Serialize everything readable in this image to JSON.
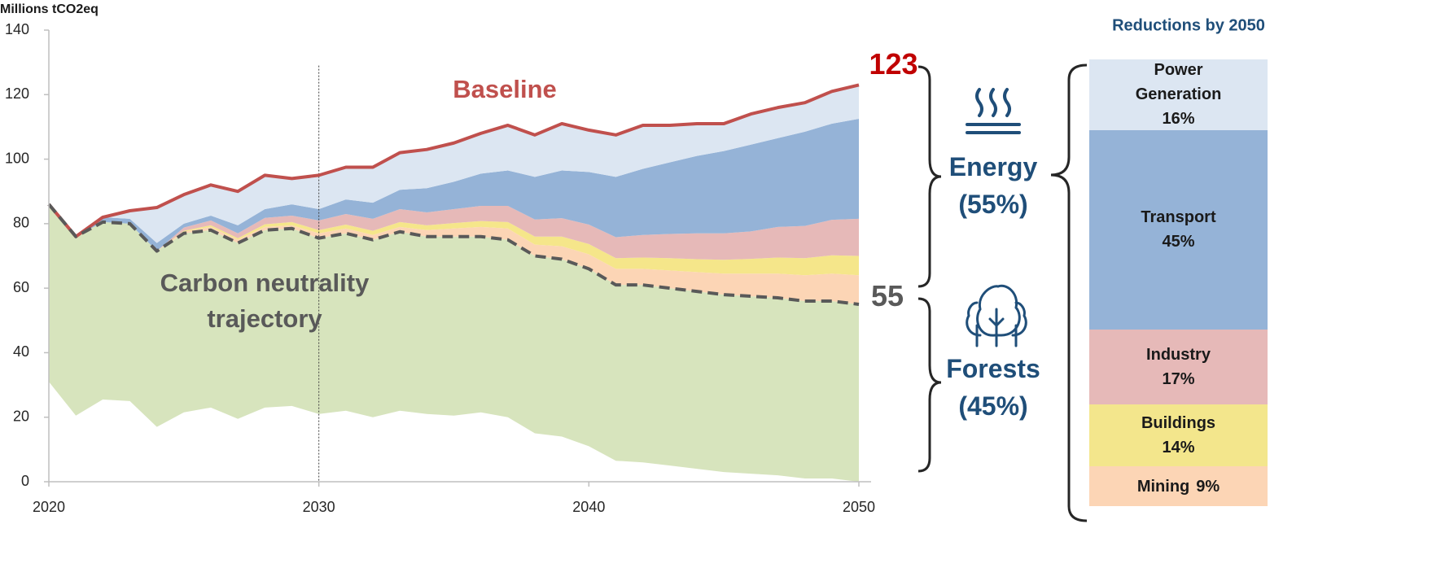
{
  "chart_data": [
    {
      "type": "stacked_area",
      "y_label": "Millions tCO2eq",
      "x": [
        2020,
        2021,
        2022,
        2023,
        2024,
        2025,
        2026,
        2027,
        2028,
        2029,
        2030,
        2031,
        2032,
        2033,
        2034,
        2035,
        2036,
        2037,
        2038,
        2039,
        2040,
        2041,
        2042,
        2043,
        2044,
        2045,
        2046,
        2047,
        2048,
        2049,
        2050
      ],
      "xlim": [
        2020,
        2050
      ],
      "xticks": [
        2020,
        2030,
        2040,
        2050
      ],
      "ylim": [
        0,
        140
      ],
      "yticks": [
        0,
        20,
        40,
        60,
        80,
        100,
        120,
        140
      ],
      "vline": {
        "x": 2030,
        "top": 129
      },
      "series": [
        {
          "color": "#ffffff",
          "values": [
            31,
            20.5,
            25.5,
            25,
            17,
            21.5,
            23,
            19.5,
            23,
            23.5,
            21,
            22,
            20,
            22,
            21,
            20.5,
            21.5,
            20,
            15,
            14,
            11,
            6.5,
            6,
            5,
            4,
            3,
            2.5,
            2,
            1,
            1,
            0
          ]
        },
        {
          "color": "#d7e4bd",
          "values": [
            55,
            55.5,
            55,
            55,
            54.5,
            55.5,
            55,
            54.5,
            55,
            55,
            54.5,
            55,
            55,
            55.5,
            55,
            55.5,
            54.5,
            55,
            55,
            55,
            55,
            54.5,
            55,
            55,
            55,
            55,
            55,
            55,
            55,
            55,
            55
          ]
        },
        {
          "color": "#fcd5b5",
          "values": [
            0,
            0,
            0,
            0,
            0,
            0.5,
            1,
            1,
            1,
            1,
            1.5,
            1.5,
            1.5,
            1.5,
            2,
            2.5,
            3,
            3.5,
            3.5,
            4,
            4.5,
            5,
            5,
            5.5,
            6,
            6.5,
            7,
            7.5,
            8,
            8.5,
            9
          ]
        },
        {
          "color": "#f5e68a",
          "values": [
            0,
            0,
            0,
            0,
            0,
            0.3,
            0.5,
            0.5,
            0.8,
            1,
            1,
            1.2,
            1.3,
            1.5,
            1.5,
            1.7,
            1.8,
            2,
            2.5,
            3,
            3.2,
            3.3,
            3.5,
            3.8,
            4,
            4.3,
            4.6,
            5,
            5.3,
            5.7,
            6
          ]
        },
        {
          "color": "#e6b9b8",
          "values": [
            0,
            0,
            0,
            0,
            0,
            1,
            1.5,
            1.5,
            2,
            2,
            3,
            3.3,
            3.7,
            4,
            4,
            4.3,
            4.7,
            5,
            5.3,
            5.7,
            6,
            6.5,
            7,
            7.5,
            8,
            8.2,
            8.5,
            9.5,
            10,
            11,
            11.5
          ]
        },
        {
          "color": "#95b3d7",
          "values": [
            0,
            0,
            1.5,
            1.5,
            2.5,
            1.2,
            1.5,
            2.5,
            2.7,
            3.5,
            3.5,
            4.5,
            5,
            6,
            7.5,
            8.5,
            10,
            11,
            13.2,
            14.8,
            16.3,
            18.7,
            20.5,
            22.2,
            24,
            25.5,
            26.9,
            27.5,
            29.2,
            29.8,
            31
          ]
        },
        {
          "color": "#dce6f2",
          "values": [
            0,
            0,
            0,
            2.5,
            11,
            9,
            9.5,
            10.5,
            10.5,
            8,
            10.5,
            10,
            11,
            11.5,
            12,
            12,
            12.5,
            14,
            13,
            14.5,
            13,
            13,
            13.5,
            11.5,
            10,
            8.5,
            9.5,
            9.5,
            9,
            10,
            10.5
          ]
        }
      ],
      "lines": [
        {
          "name": "Baseline",
          "color": "#c0504d",
          "values": [
            86,
            76,
            82,
            84,
            85,
            89,
            92,
            90,
            95,
            94,
            95,
            97.5,
            97.5,
            102,
            103,
            105,
            108,
            110.5,
            107.5,
            111,
            109,
            107.5,
            110.5,
            110.5,
            111,
            111,
            114,
            116,
            117.5,
            121,
            123
          ]
        },
        {
          "name": "Carbon neutrality trajectory",
          "color": "#595959",
          "dashed": true,
          "values": [
            86,
            76,
            80.5,
            80,
            71.5,
            77,
            78,
            74,
            78,
            78.5,
            75.5,
            77,
            75,
            77.5,
            76,
            76,
            76,
            75,
            70,
            69,
            66,
            61,
            61,
            60,
            59,
            58,
            57.5,
            57,
            56,
            56,
            55
          ]
        }
      ],
      "annotations": [
        "Energy (55%)",
        "Forests (45%)"
      ]
    },
    {
      "type": "stacked_bar",
      "title": "Reductions by 2050",
      "series": [
        {
          "name": "Power Generation",
          "color": "#dce6f2",
          "values": [
            16
          ],
          "value_labels": [
            "16%"
          ]
        },
        {
          "name": "Transport",
          "color": "#95b3d7",
          "values": [
            45
          ],
          "value_labels": [
            "45%"
          ]
        },
        {
          "name": "Industry",
          "color": "#e6b9b8",
          "values": [
            17
          ],
          "value_labels": [
            "17%"
          ]
        },
        {
          "name": "Buildings",
          "color": "#f3e68c",
          "values": [
            14
          ],
          "value_labels": [
            "14%"
          ]
        },
        {
          "name": "Mining",
          "color": "#fcd5b5",
          "values": [
            9
          ],
          "value_labels": [
            "9%"
          ]
        }
      ]
    }
  ]
}
